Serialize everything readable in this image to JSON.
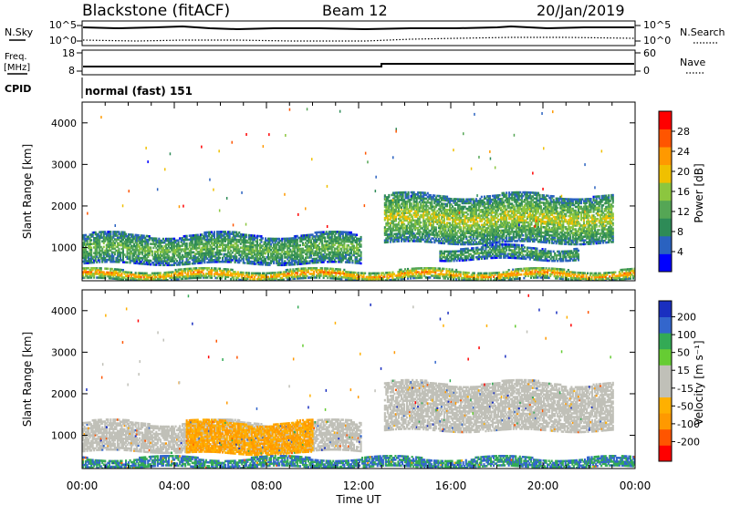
{
  "header": {
    "station": "Blackstone (fitACF)",
    "beam": "Beam 12",
    "date": "20/Jan/2019"
  },
  "side_labels": {
    "nsky": "N.Sky",
    "nsearch": "N.Search",
    "freq": "Freq.",
    "mhz": "[MHz]",
    "nave": "Nave",
    "cpid": "CPID"
  },
  "noise_panel": {
    "left_ticks": [
      "10^5",
      "10^0"
    ],
    "right_ticks": [
      "10^5",
      "10^0"
    ]
  },
  "freq_panel": {
    "left_ticks": [
      "18",
      "8"
    ],
    "right_ticks": [
      "60",
      "0"
    ]
  },
  "cpid_text": "normal (fast) 151",
  "chart_data": [
    {
      "type": "heatmap",
      "title": "",
      "ylabel": "Slant Range [km]",
      "ylim": [
        200,
        4500
      ],
      "yticks": [
        "1000",
        "2000",
        "3000",
        "4000"
      ],
      "colorbar_label": "Power [dB]",
      "colorbar_ticks": [
        "28",
        "24",
        "20",
        "16",
        "12",
        "8",
        "4"
      ],
      "colors": [
        "#0000ff",
        "#2a62c0",
        "#2e8b57",
        "#55a655",
        "#8cc63f",
        "#f0c000",
        "#ff9900",
        "#ff5500",
        "#ff0000"
      ],
      "bands": [
        {
          "name": "low-range echoes 00-12UT",
          "x": [
            0,
            12.1
          ],
          "y": [
            600,
            1300
          ],
          "value": 14
        },
        {
          "name": "near-range clutter",
          "x": [
            0,
            24
          ],
          "y": [
            220,
            450
          ],
          "value": 26
        },
        {
          "name": "far echoes 13-23UT",
          "x": [
            13.1,
            23.0
          ],
          "y": [
            1100,
            2250
          ],
          "value": 18
        },
        {
          "name": "lower band 15-21UT",
          "x": [
            15.5,
            21.5
          ],
          "y": [
            700,
            1000
          ],
          "value": 12
        }
      ]
    },
    {
      "type": "heatmap",
      "title": "",
      "xlabel": "Time UT",
      "ylabel": "Slant Range [km]",
      "ylim": [
        200,
        4500
      ],
      "xlim": [
        0,
        24
      ],
      "xticks": [
        "00:00",
        "04:00",
        "08:00",
        "12:00",
        "16:00",
        "20:00",
        "00:00"
      ],
      "yticks": [
        "1000",
        "2000",
        "3000",
        "4000"
      ],
      "colorbar_label": "Velocity [m s⁻¹]",
      "colorbar_ticks": [
        "200",
        "100",
        "50",
        "15",
        "-15",
        "-50",
        "-100",
        "-200"
      ],
      "colors": [
        "#ff0000",
        "#ff5500",
        "#ff9900",
        "#ffb000",
        "#c0c0b8",
        "#c0c0b8",
        "#66cc33",
        "#33aa55",
        "#3366cc",
        "#1a2fc0"
      ],
      "bands": [
        {
          "name": "ground scatter",
          "x": [
            0,
            12.1
          ],
          "y": [
            600,
            1300
          ],
          "value": 0
        },
        {
          "name": "negative velocity",
          "x": [
            4.5,
            10
          ],
          "y": [
            550,
            1300
          ],
          "value": -50
        },
        {
          "name": "far ground scatter",
          "x": [
            13.1,
            23.0
          ],
          "y": [
            1100,
            2250
          ],
          "value": 0
        },
        {
          "name": "near green",
          "x": [
            0,
            24
          ],
          "y": [
            220,
            450
          ],
          "value": 50
        }
      ]
    }
  ]
}
